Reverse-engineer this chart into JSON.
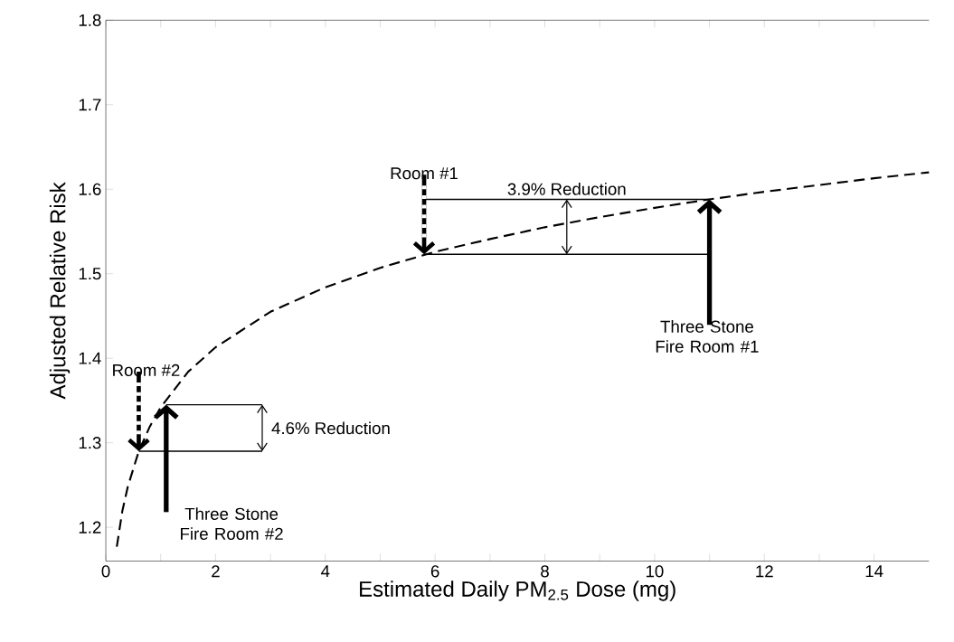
{
  "chart_data": {
    "type": "line",
    "xlabel": "Estimated Daily PM$_{2.5}$ Dose (mg)",
    "ylabel": "Adjusted Relative Risk",
    "x": [
      0.2,
      0.3,
      0.4,
      0.6,
      0.8,
      1.0,
      1.5,
      2,
      3,
      4,
      5,
      6,
      7,
      8,
      9,
      10,
      11,
      12,
      13,
      14,
      15
    ],
    "series": [
      {
        "color": "#000000",
        "line_style": "dashed",
        "marker": "none",
        "values": [
          1.177,
          1.219,
          1.248,
          1.29,
          1.319,
          1.342,
          1.384,
          1.413,
          1.455,
          1.484,
          1.507,
          1.526,
          1.541,
          1.555,
          1.567,
          1.578,
          1.588,
          1.597,
          1.605,
          1.613,
          1.62
        ]
      },
      {
        "color": "#000000",
        "line_style": "solid",
        "marker": "none",
        "x": [
          5.8,
          11.0
        ],
        "values": [
          1.588,
          1.588
        ]
      },
      {
        "color": "#000000",
        "line_style": "solid",
        "marker": "none",
        "x": [
          5.8,
          11.0
        ],
        "values": [
          1.523,
          1.523
        ]
      },
      {
        "color": "#000000",
        "line_style": "solid",
        "marker": "none",
        "x": [
          1.1,
          2.85
        ],
        "values": [
          1.345,
          1.345
        ]
      },
      {
        "color": "#000000",
        "line_style": "solid",
        "marker": "none",
        "x": [
          0.6,
          2.85
        ],
        "values": [
          1.29,
          1.29
        ]
      }
    ],
    "xlim": [
      0,
      15
    ],
    "ylim": [
      1.16,
      1.8
    ],
    "xticks": [
      0,
      {
        "value": 1,
        "label": null
      },
      2,
      {
        "value": 3,
        "label": null
      },
      4,
      {
        "value": 5,
        "label": null
      },
      6,
      {
        "value": 7,
        "label": null
      },
      8,
      {
        "value": 9,
        "label": null
      },
      10,
      {
        "value": 11,
        "label": null
      },
      12,
      {
        "value": 13,
        "label": null
      },
      14
    ],
    "yticks": [
      1.2,
      1.3,
      1.4,
      1.5,
      1.6,
      1.7,
      1.8
    ],
    "grid": false,
    "annotations": [
      {
        "text": "Room #1",
        "x": 5.8,
        "y": 1.523
      },
      {
        "text": "Three Stone Fire Room #1",
        "x": 11.0,
        "y": 1.588
      },
      {
        "text": "3.9% Reduction",
        "x": 8.4,
        "y": 1.588
      },
      {
        "text": "Room #2",
        "x": 0.6,
        "y": 1.29
      },
      {
        "text": "Three Stone Fire Room #2",
        "x": 1.1,
        "y": 1.345
      },
      {
        "text": "4.6% Reduction",
        "x": 2.85,
        "y": 1.345
      }
    ]
  }
}
